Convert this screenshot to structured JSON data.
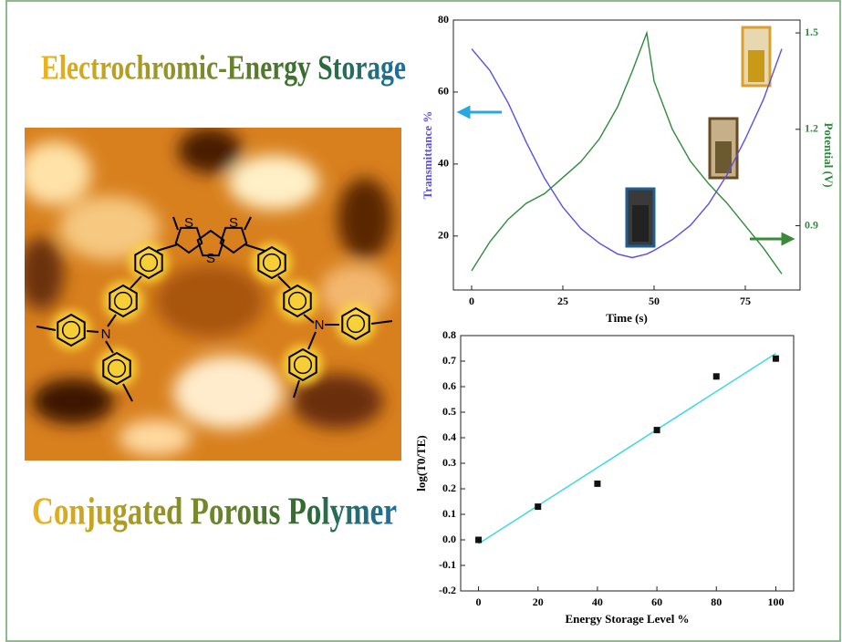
{
  "headline_top": "Electrochromic-Energy Storage",
  "headline_bottom": "Conjugated Porous Polymer",
  "molecule": {
    "atoms": [
      "S",
      "S",
      "S",
      "N",
      "N"
    ]
  },
  "chart_data": [
    {
      "type": "line",
      "x_label": "Time (s)",
      "y_label": "Transmittance %",
      "y2_label": "Potential (V)",
      "x": [
        0,
        5,
        10,
        15,
        20,
        25,
        30,
        35,
        40,
        44,
        48,
        50,
        55,
        60,
        65,
        70,
        75,
        80,
        85
      ],
      "series": [
        {
          "color": "#5a4fe0",
          "values": [
            72,
            66,
            57,
            46,
            36,
            28,
            22,
            18,
            15,
            14,
            15,
            16,
            19,
            23,
            29,
            37,
            47,
            58,
            72
          ]
        },
        {
          "color": "#2f8a3c",
          "axis": "y2",
          "values": [
            0.76,
            0.85,
            0.92,
            0.97,
            1.0,
            1.05,
            1.1,
            1.17,
            1.27,
            1.38,
            1.5,
            1.35,
            1.2,
            1.1,
            1.03,
            0.97,
            0.9,
            0.83,
            0.75
          ]
        }
      ],
      "xlim": [
        -5,
        90
      ],
      "xticks": [
        0,
        25,
        50,
        75
      ],
      "ylim": [
        5,
        80
      ],
      "yticks": [
        20,
        40,
        60,
        80
      ],
      "y2lim": [
        0.7,
        1.54
      ],
      "y2ticks": [
        0.9,
        1.2,
        1.5
      ]
    },
    {
      "type": "scatter",
      "x_label": "Energy Storage Level %",
      "y_label": "log(T0/TE)",
      "x": [
        0,
        20,
        40,
        60,
        80,
        100
      ],
      "values": [
        0,
        0.13,
        0.22,
        0.43,
        0.64,
        0.71
      ],
      "color": "#111111",
      "fit": {
        "x": [
          0,
          100
        ],
        "values": [
          -0.015,
          0.73
        ],
        "color": "#3fd8dc"
      },
      "xlim": [
        -6,
        106
      ],
      "xticks": [
        0,
        20,
        40,
        60,
        80,
        100
      ],
      "ylim": [
        -0.2,
        0.8
      ],
      "yticks": [
        -0.2,
        -0.1,
        {
          "value": 0,
          "label": "0.0"
        },
        0.1,
        0.2,
        0.3,
        0.4,
        0.5,
        0.6,
        0.7,
        0.8
      ]
    }
  ]
}
